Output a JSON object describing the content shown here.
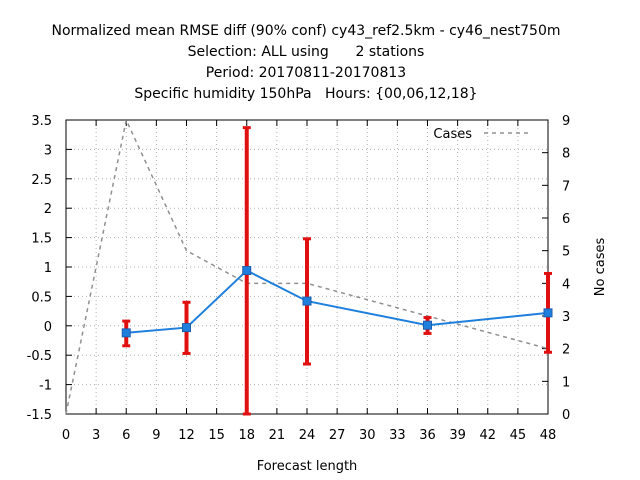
{
  "chart_data": {
    "type": "line",
    "title_lines": [
      "Normalized mean RMSE diff (90% conf) cy43_ref2.5km - cy46_nest750m",
      "Selection: ALL using      2 stations",
      "Period: 20170811-20170813",
      "Specific humidity 150hPa   Hours: {00,06,12,18}"
    ],
    "xlabel": "Forecast length",
    "ylabel_right": "No cases",
    "xlim": [
      0,
      48
    ],
    "ylim": [
      -1.5,
      3.5
    ],
    "y2lim": [
      0,
      9
    ],
    "xticks": [
      "0",
      "3",
      "6",
      "9",
      "12",
      "15",
      "18",
      "21",
      "24",
      "27",
      "30",
      "33",
      "36",
      "39",
      "42",
      "45",
      "48"
    ],
    "yticks": [
      "-1.5",
      "-1",
      "-0.5",
      "0",
      "0.5",
      "1",
      "1.5",
      "2",
      "2.5",
      "3",
      "3.5"
    ],
    "y2ticks": [
      "0",
      "1",
      "2",
      "3",
      "4",
      "5",
      "6",
      "7",
      "8",
      "9"
    ],
    "grid": true,
    "legend_position": "top-right",
    "series": [
      {
        "name": "",
        "axis": "left",
        "color": "#1f7fdc",
        "x": [
          6,
          12,
          18,
          24,
          36,
          48
        ],
        "y": [
          -0.12,
          -0.03,
          0.94,
          0.42,
          0.01,
          0.22
        ],
        "err_low": [
          -0.34,
          -0.47,
          -1.5,
          -0.65,
          -0.13,
          -0.45
        ],
        "err_high": [
          0.08,
          0.4,
          3.37,
          1.48,
          0.14,
          0.89
        ],
        "err_color": "#e01010"
      },
      {
        "name": "Cases",
        "axis": "right",
        "color": "#909090",
        "x": [
          0,
          6,
          12,
          18,
          24,
          36,
          48
        ],
        "y": [
          0,
          9,
          5,
          4,
          4,
          3,
          2
        ]
      }
    ]
  }
}
